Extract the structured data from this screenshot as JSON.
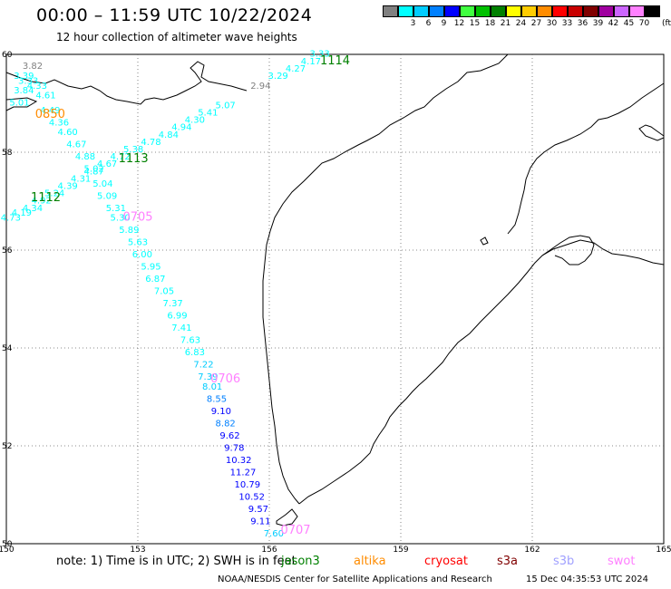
{
  "title": "00:00 – 11:59 UTC 10/22/2024",
  "subtitle": "12 hour collection of altimeter wave heights",
  "colorbar": {
    "unit": "(ft)",
    "entries": [
      {
        "label": "",
        "color": "#808080"
      },
      {
        "label": "3",
        "color": "#00ffff"
      },
      {
        "label": "6",
        "color": "#00ccff"
      },
      {
        "label": "9",
        "color": "#0080ff"
      },
      {
        "label": "12",
        "color": "#0000ff"
      },
      {
        "label": "15",
        "color": "#40ff40"
      },
      {
        "label": "18",
        "color": "#00c000"
      },
      {
        "label": "21",
        "color": "#008000"
      },
      {
        "label": "24",
        "color": "#ffff00"
      },
      {
        "label": "27",
        "color": "#ffcc00"
      },
      {
        "label": "30",
        "color": "#ff8c00"
      },
      {
        "label": "33",
        "color": "#ff0000"
      },
      {
        "label": "36",
        "color": "#c80000"
      },
      {
        "label": "39",
        "color": "#800000"
      },
      {
        "label": "42",
        "color": "#a000a0"
      },
      {
        "label": "45",
        "color": "#cc66ff"
      },
      {
        "label": "70",
        "color": "#ff80ff"
      },
      {
        "label": "",
        "color": "#000000"
      }
    ]
  },
  "axes": {
    "lat_labels": [
      "60",
      "58",
      "56",
      "54",
      "52",
      "50"
    ],
    "lon_labels": [
      "150",
      "153",
      "156",
      "159",
      "162",
      "165"
    ]
  },
  "chart_data": {
    "type": "scatter",
    "title": "00:00 – 11:59 UTC 10/22/2024",
    "subtitle": "12 hour collection of altimeter wave heights",
    "xlabel": "",
    "ylabel": "",
    "xlim": [
      150,
      165
    ],
    "ylim": [
      50,
      60
    ],
    "grid": true,
    "track_labels": [
      {
        "text": "1114",
        "lon": 157.5,
        "lat": 59.8,
        "color": "#008000"
      },
      {
        "text": "0850",
        "lon": 151.0,
        "lat": 58.7,
        "color": "#ff8c00"
      },
      {
        "text": "1113",
        "lon": 152.9,
        "lat": 57.8,
        "color": "#008000"
      },
      {
        "text": "1112",
        "lon": 150.9,
        "lat": 57.0,
        "color": "#008000"
      },
      {
        "text": "0705",
        "lon": 153.0,
        "lat": 56.6,
        "color": "#ff80ff"
      },
      {
        "text": "0706",
        "lon": 155.0,
        "lat": 53.3,
        "color": "#ff80ff"
      },
      {
        "text": "0707",
        "lon": 156.6,
        "lat": 50.2,
        "color": "#ff80ff"
      }
    ],
    "points": [
      {
        "lon": 157.15,
        "lat": 59.95,
        "v": "3.33",
        "c": "#00ffff"
      },
      {
        "lon": 156.95,
        "lat": 59.8,
        "v": "4.17",
        "c": "#00ffff"
      },
      {
        "lon": 156.6,
        "lat": 59.65,
        "v": "4.27",
        "c": "#00ffff"
      },
      {
        "lon": 156.2,
        "lat": 59.5,
        "v": "3.29",
        "c": "#00ffff"
      },
      {
        "lon": 155.8,
        "lat": 59.3,
        "v": "2.94",
        "c": "#808080"
      },
      {
        "lon": 155.0,
        "lat": 58.9,
        "v": "5.07",
        "c": "#00ffff"
      },
      {
        "lon": 154.6,
        "lat": 58.75,
        "v": "5.41",
        "c": "#00ffff"
      },
      {
        "lon": 154.3,
        "lat": 58.6,
        "v": "4.30",
        "c": "#00ffff"
      },
      {
        "lon": 154.0,
        "lat": 58.45,
        "v": "4.94",
        "c": "#00ffff"
      },
      {
        "lon": 153.7,
        "lat": 58.3,
        "v": "4.84",
        "c": "#00ffff"
      },
      {
        "lon": 153.3,
        "lat": 58.15,
        "v": "4.78",
        "c": "#00ffff"
      },
      {
        "lon": 152.9,
        "lat": 58.0,
        "v": "5.38",
        "c": "#00ffff"
      },
      {
        "lon": 152.6,
        "lat": 57.85,
        "v": "4.72",
        "c": "#00ffff"
      },
      {
        "lon": 152.3,
        "lat": 57.7,
        "v": "4.67",
        "c": "#00ffff"
      },
      {
        "lon": 152.0,
        "lat": 57.55,
        "v": "4.87",
        "c": "#00ffff"
      },
      {
        "lon": 151.7,
        "lat": 57.4,
        "v": "4.31",
        "c": "#00ffff"
      },
      {
        "lon": 151.4,
        "lat": 57.25,
        "v": "4.39",
        "c": "#00ffff"
      },
      {
        "lon": 151.1,
        "lat": 57.1,
        "v": "5.24",
        "c": "#00ffff"
      },
      {
        "lon": 150.8,
        "lat": 56.95,
        "v": "4.92",
        "c": "#00ffff"
      },
      {
        "lon": 150.6,
        "lat": 56.8,
        "v": "4.34",
        "c": "#00ffff"
      },
      {
        "lon": 150.35,
        "lat": 56.7,
        "v": "4.19",
        "c": "#00ffff"
      },
      {
        "lon": 150.1,
        "lat": 56.6,
        "v": "4.73",
        "c": "#00ffff"
      },
      {
        "lon": 150.6,
        "lat": 59.7,
        "v": "3.82",
        "c": "#808080"
      },
      {
        "lon": 150.4,
        "lat": 59.5,
        "v": "3.39",
        "c": "#00ffff"
      },
      {
        "lon": 150.5,
        "lat": 59.4,
        "v": "3.33",
        "c": "#00ffff"
      },
      {
        "lon": 150.7,
        "lat": 59.3,
        "v": "4.33",
        "c": "#00ffff"
      },
      {
        "lon": 150.4,
        "lat": 59.2,
        "v": "3.84",
        "c": "#00ffff"
      },
      {
        "lon": 150.9,
        "lat": 59.1,
        "v": "4.61",
        "c": "#00ffff"
      },
      {
        "lon": 150.3,
        "lat": 58.95,
        "v": "5.01",
        "c": "#00ffff"
      },
      {
        "lon": 151.0,
        "lat": 58.8,
        "v": "4.49",
        "c": "#00ffff"
      },
      {
        "lon": 151.2,
        "lat": 58.55,
        "v": "4.36",
        "c": "#00ffff"
      },
      {
        "lon": 151.4,
        "lat": 58.35,
        "v": "4.60",
        "c": "#00ffff"
      },
      {
        "lon": 151.6,
        "lat": 58.1,
        "v": "4.67",
        "c": "#00ffff"
      },
      {
        "lon": 151.8,
        "lat": 57.85,
        "v": "4.88",
        "c": "#00ffff"
      },
      {
        "lon": 152.0,
        "lat": 57.6,
        "v": "5.02",
        "c": "#00ffff"
      },
      {
        "lon": 152.2,
        "lat": 57.3,
        "v": "5.04",
        "c": "#00ffff"
      },
      {
        "lon": 152.3,
        "lat": 57.05,
        "v": "5.09",
        "c": "#00ffff"
      },
      {
        "lon": 152.5,
        "lat": 56.8,
        "v": "5.31",
        "c": "#00ffff"
      },
      {
        "lon": 152.6,
        "lat": 56.6,
        "v": "5.30",
        "c": "#00ffff"
      },
      {
        "lon": 152.8,
        "lat": 56.35,
        "v": "5.89",
        "c": "#00ffff"
      },
      {
        "lon": 153.0,
        "lat": 56.1,
        "v": "5.63",
        "c": "#00ffff"
      },
      {
        "lon": 153.1,
        "lat": 55.85,
        "v": "6.00",
        "c": "#00ffff"
      },
      {
        "lon": 153.3,
        "lat": 55.6,
        "v": "5.95",
        "c": "#00ffff"
      },
      {
        "lon": 153.4,
        "lat": 55.35,
        "v": "6.87",
        "c": "#00ffff"
      },
      {
        "lon": 153.6,
        "lat": 55.1,
        "v": "7.05",
        "c": "#00ffff"
      },
      {
        "lon": 153.8,
        "lat": 54.85,
        "v": "7.37",
        "c": "#00ffff"
      },
      {
        "lon": 153.9,
        "lat": 54.6,
        "v": "6.99",
        "c": "#00ffff"
      },
      {
        "lon": 154.0,
        "lat": 54.35,
        "v": "7.41",
        "c": "#00ffff"
      },
      {
        "lon": 154.2,
        "lat": 54.1,
        "v": "7.63",
        "c": "#00ffff"
      },
      {
        "lon": 154.3,
        "lat": 53.85,
        "v": "6.83",
        "c": "#00ffff"
      },
      {
        "lon": 154.5,
        "lat": 53.6,
        "v": "7.22",
        "c": "#00ccff"
      },
      {
        "lon": 154.6,
        "lat": 53.35,
        "v": "7.39",
        "c": "#00ccff"
      },
      {
        "lon": 154.7,
        "lat": 53.15,
        "v": "8.01",
        "c": "#00ccff"
      },
      {
        "lon": 154.8,
        "lat": 52.9,
        "v": "8.55",
        "c": "#0080ff"
      },
      {
        "lon": 154.9,
        "lat": 52.65,
        "v": "9.10",
        "c": "#0000ff"
      },
      {
        "lon": 155.0,
        "lat": 52.4,
        "v": "8.82",
        "c": "#0080ff"
      },
      {
        "lon": 155.1,
        "lat": 52.15,
        "v": "9.62",
        "c": "#0000ff"
      },
      {
        "lon": 155.2,
        "lat": 51.9,
        "v": "9.78",
        "c": "#0000ff"
      },
      {
        "lon": 155.3,
        "lat": 51.65,
        "v": "10.32",
        "c": "#0000ff"
      },
      {
        "lon": 155.4,
        "lat": 51.4,
        "v": "11.27",
        "c": "#0000ff"
      },
      {
        "lon": 155.5,
        "lat": 51.15,
        "v": "10.79",
        "c": "#0000ff"
      },
      {
        "lon": 155.6,
        "lat": 50.9,
        "v": "10.52",
        "c": "#0000ff"
      },
      {
        "lon": 155.75,
        "lat": 50.65,
        "v": "9.57",
        "c": "#0000ff"
      },
      {
        "lon": 155.8,
        "lat": 50.4,
        "v": "9.11",
        "c": "#0000ff"
      },
      {
        "lon": 156.1,
        "lat": 50.15,
        "v": "7.60",
        "c": "#00ccff"
      }
    ]
  },
  "footer": {
    "note": "note:  1) Time is in UTC;  2) SWH is in feet",
    "satellites": [
      {
        "name": "jason3",
        "color": "#008000"
      },
      {
        "name": "altika",
        "color": "#ff8c00"
      },
      {
        "name": "cryosat",
        "color": "#ff0000"
      },
      {
        "name": "s3a",
        "color": "#800000"
      },
      {
        "name": "s3b",
        "color": "#a0a0ff"
      },
      {
        "name": "swot",
        "color": "#ff80ff"
      }
    ],
    "credit": "NOAA/NESDIS Center for Satellite Applications and Research",
    "timestamp": "15 Dec 04:35:53 UTC 2024"
  }
}
